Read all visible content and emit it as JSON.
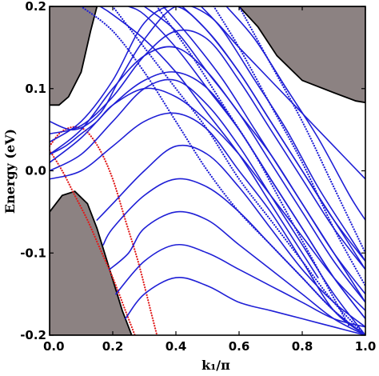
{
  "chart_data": {
    "type": "line",
    "title": "",
    "xlabel": "k₁/π",
    "ylabel": "Energy (eV)",
    "xlim": [
      0.0,
      1.0
    ],
    "ylim": [
      -0.2,
      0.2
    ],
    "grid": false,
    "x_ticks": [
      {
        "value": 0.0,
        "label": "0.0"
      },
      {
        "value": 0.2,
        "label": "0.2"
      },
      {
        "value": 0.4,
        "label": "0.4"
      },
      {
        "value": 0.6,
        "label": "0.6"
      },
      {
        "value": 0.8,
        "label": "0.8"
      },
      {
        "value": 1.0,
        "label": "1.0"
      }
    ],
    "y_ticks": [
      {
        "value": 0.2,
        "label": "0.2"
      },
      {
        "value": 0.1,
        "label": "0.1"
      },
      {
        "value": 0.0,
        "label": "0.0"
      },
      {
        "value": -0.1,
        "label": "-0.1"
      },
      {
        "value": -0.2,
        "label": "-0.2"
      }
    ],
    "colors": {
      "bulk_region": "#8c8282",
      "bulk_edge": "#000000",
      "blue_bands": "#1f1fd6",
      "red_band": "#e01a1a"
    },
    "regions": [
      {
        "name": "upper-left bulk",
        "boundary": [
          [
            0,
            0.2
          ],
          [
            0.15,
            0.2
          ],
          [
            0.13,
            0.17
          ],
          [
            0.1,
            0.12
          ],
          [
            0.06,
            0.09
          ],
          [
            0.03,
            0.08
          ],
          [
            0,
            0.08
          ]
        ]
      },
      {
        "name": "upper-right bulk",
        "boundary": [
          [
            0.6,
            0.2
          ],
          [
            1.0,
            0.2
          ],
          [
            1.0,
            0.083
          ],
          [
            0.97,
            0.085
          ],
          [
            0.9,
            0.095
          ],
          [
            0.8,
            0.11
          ],
          [
            0.72,
            0.14
          ],
          [
            0.66,
            0.175
          ]
        ]
      },
      {
        "name": "lower-left bulk",
        "boundary": [
          [
            0,
            -0.2
          ],
          [
            0.26,
            -0.2
          ],
          [
            0.23,
            -0.17
          ],
          [
            0.19,
            -0.12
          ],
          [
            0.15,
            -0.07
          ],
          [
            0.12,
            -0.04
          ],
          [
            0.08,
            -0.025
          ],
          [
            0.04,
            -0.03
          ],
          [
            0,
            -0.05
          ]
        ]
      }
    ],
    "series": [
      {
        "color": "#e01a1a",
        "style": "dotted",
        "x": [
          0.0,
          0.03,
          0.06,
          0.09,
          0.12,
          0.16,
          0.2,
          0.24,
          0.28,
          0.32,
          0.34
        ],
        "y": [
          0.03,
          0.045,
          0.052,
          0.053,
          0.047,
          0.025,
          -0.01,
          -0.06,
          -0.11,
          -0.17,
          -0.2
        ]
      },
      {
        "color": "#e01a1a",
        "style": "dotted",
        "x": [
          0.0,
          0.04,
          0.08,
          0.12,
          0.16,
          0.2,
          0.24,
          0.27
        ],
        "y": [
          0.025,
          0.0,
          -0.03,
          -0.06,
          -0.095,
          -0.13,
          -0.17,
          -0.2
        ]
      },
      {
        "color": "#1f1fd6",
        "style": "solid",
        "x": [
          0.0,
          0.08,
          0.16,
          0.22,
          0.3,
          0.4,
          0.5,
          0.6,
          0.7,
          0.8,
          0.9,
          1.0
        ],
        "y": [
          0.06,
          0.05,
          0.07,
          0.11,
          0.16,
          0.2,
          0.19,
          0.15,
          0.11,
          0.07,
          0.03,
          -0.01
        ]
      },
      {
        "color": "#1f1fd6",
        "style": "solid",
        "x": [
          0.0,
          0.1,
          0.2,
          0.3,
          0.4,
          0.5,
          0.6,
          0.7,
          0.8,
          0.9,
          1.0
        ],
        "y": [
          0.045,
          0.055,
          0.09,
          0.14,
          0.17,
          0.16,
          0.11,
          0.05,
          -0.01,
          -0.07,
          -0.12
        ]
      },
      {
        "color": "#1f1fd6",
        "style": "solid",
        "x": [
          0.0,
          0.1,
          0.2,
          0.3,
          0.4,
          0.5,
          0.6,
          0.7,
          0.8,
          0.9,
          1.0
        ],
        "y": [
          0.035,
          0.06,
          0.11,
          0.18,
          0.2,
          0.17,
          0.12,
          0.06,
          0.0,
          -0.06,
          -0.11
        ]
      },
      {
        "color": "#1f1fd6",
        "style": "solid",
        "x": [
          0.0,
          0.1,
          0.2,
          0.3,
          0.4,
          0.5,
          0.6,
          0.7,
          0.8,
          0.9,
          1.0
        ],
        "y": [
          0.02,
          0.05,
          0.1,
          0.14,
          0.15,
          0.12,
          0.07,
          0.02,
          -0.04,
          -0.1,
          -0.15
        ]
      },
      {
        "color": "#1f1fd6",
        "style": "solid",
        "x": [
          0.0,
          0.1,
          0.2,
          0.3,
          0.4,
          0.5,
          0.6,
          0.7,
          0.8,
          0.9,
          1.0
        ],
        "y": [
          0.01,
          0.04,
          0.08,
          0.11,
          0.12,
          0.1,
          0.05,
          -0.01,
          -0.07,
          -0.13,
          -0.18
        ]
      },
      {
        "color": "#1f1fd6",
        "style": "solid",
        "x": [
          0.0,
          0.1,
          0.2,
          0.3,
          0.4,
          0.5,
          0.6,
          0.7,
          0.8,
          0.9,
          1.0
        ],
        "y": [
          0.0,
          0.02,
          0.06,
          0.1,
          0.11,
          0.08,
          0.03,
          -0.03,
          -0.09,
          -0.15,
          -0.2
        ]
      },
      {
        "color": "#1f1fd6",
        "style": "solid",
        "x": [
          0.0,
          0.1,
          0.2,
          0.3,
          0.4,
          0.5,
          0.6,
          0.7,
          0.8,
          0.9,
          1.0
        ],
        "y": [
          -0.01,
          0.0,
          0.03,
          0.06,
          0.07,
          0.05,
          0.0,
          -0.05,
          -0.11,
          -0.17,
          -0.2
        ]
      },
      {
        "color": "#1f1fd6",
        "style": "solid",
        "x": [
          0.15,
          0.2,
          0.3,
          0.4,
          0.5,
          0.6,
          0.7,
          0.8,
          0.9,
          1.0
        ],
        "y": [
          -0.06,
          -0.04,
          0.0,
          0.03,
          0.02,
          -0.02,
          -0.07,
          -0.12,
          -0.16,
          -0.19
        ]
      },
      {
        "color": "#1f1fd6",
        "style": "solid",
        "x": [
          0.17,
          0.2,
          0.3,
          0.4,
          0.5,
          0.6,
          0.7,
          0.8,
          0.9,
          1.0
        ],
        "y": [
          -0.09,
          -0.07,
          -0.03,
          -0.01,
          -0.02,
          -0.05,
          -0.09,
          -0.13,
          -0.17,
          -0.2
        ]
      },
      {
        "color": "#1f1fd6",
        "style": "solid",
        "x": [
          0.19,
          0.25,
          0.3,
          0.4,
          0.5,
          0.6,
          0.7,
          0.8,
          0.9,
          1.0
        ],
        "y": [
          -0.12,
          -0.1,
          -0.07,
          -0.05,
          -0.06,
          -0.09,
          -0.12,
          -0.15,
          -0.18,
          -0.2
        ]
      },
      {
        "color": "#1f1fd6",
        "style": "solid",
        "x": [
          0.21,
          0.3,
          0.4,
          0.5,
          0.6,
          0.7,
          0.8,
          0.9,
          1.0
        ],
        "y": [
          -0.15,
          -0.11,
          -0.09,
          -0.1,
          -0.12,
          -0.14,
          -0.16,
          -0.18,
          -0.19
        ]
      },
      {
        "color": "#1f1fd6",
        "style": "solid",
        "x": [
          0.24,
          0.3,
          0.4,
          0.5,
          0.6,
          0.7,
          0.8,
          0.9,
          1.0
        ],
        "y": [
          -0.18,
          -0.15,
          -0.13,
          -0.14,
          -0.16,
          -0.17,
          -0.18,
          -0.19,
          -0.2
        ]
      },
      {
        "color": "#1f1fd6",
        "style": "solid",
        "x": [
          0.16,
          0.2,
          0.3,
          0.4,
          0.5,
          0.6,
          0.7,
          0.8,
          0.85
        ],
        "y": [
          0.2,
          0.19,
          0.16,
          0.12,
          0.07,
          0.02,
          -0.04,
          -0.1,
          -0.13
        ]
      },
      {
        "color": "#1f1fd6",
        "style": "solid",
        "x": [
          0.25,
          0.3,
          0.4,
          0.5,
          0.6,
          0.7,
          0.8,
          0.9,
          1.0
        ],
        "y": [
          0.2,
          0.19,
          0.15,
          0.1,
          0.05,
          -0.01,
          -0.07,
          -0.13,
          -0.18
        ]
      },
      {
        "color": "#1f1fd6",
        "style": "solid",
        "x": [
          0.3,
          0.4,
          0.5,
          0.6,
          0.7,
          0.8,
          0.9,
          1.0
        ],
        "y": [
          0.2,
          0.17,
          0.12,
          0.07,
          0.01,
          -0.05,
          -0.11,
          -0.16
        ]
      },
      {
        "color": "#1f1fd6",
        "style": "solid",
        "x": [
          0.36,
          0.45,
          0.55,
          0.65,
          0.75,
          0.85,
          0.95,
          1.0
        ],
        "y": [
          0.2,
          0.16,
          0.11,
          0.05,
          -0.01,
          -0.07,
          -0.13,
          -0.16
        ]
      },
      {
        "color": "#1f1fd6",
        "style": "solid",
        "x": [
          0.42,
          0.5,
          0.6,
          0.7,
          0.8,
          0.9,
          1.0
        ],
        "y": [
          0.2,
          0.17,
          0.12,
          0.06,
          0.0,
          -0.06,
          -0.12
        ]
      },
      {
        "color": "#1f1fd6",
        "style": "solid",
        "x": [
          0.48,
          0.55,
          0.65,
          0.75,
          0.85,
          0.95,
          1.0
        ],
        "y": [
          0.2,
          0.17,
          0.11,
          0.05,
          -0.02,
          -0.08,
          -0.11
        ]
      },
      {
        "color": "#1f1fd6",
        "style": "solid",
        "x": [
          0.56,
          0.65,
          0.75,
          0.85,
          0.95,
          1.0
        ],
        "y": [
          0.2,
          0.16,
          0.1,
          0.04,
          -0.03,
          -0.06
        ]
      },
      {
        "color": "#1f1fd6",
        "style": "solid",
        "x": [
          0.0,
          0.05,
          0.1,
          0.15,
          0.2,
          0.3,
          0.4,
          0.5,
          0.6,
          0.7,
          0.8,
          0.9,
          1.0
        ],
        "y": [
          0.02,
          0.03,
          0.045,
          0.06,
          0.08,
          0.1,
          0.09,
          0.06,
          0.02,
          -0.03,
          -0.08,
          -0.13,
          -0.17
        ]
      },
      {
        "color": "#1f1fd6",
        "style": "dotted",
        "x": [
          0.1,
          0.2,
          0.3,
          0.4,
          0.5,
          0.6,
          0.7,
          0.8,
          0.9,
          1.0
        ],
        "y": [
          0.2,
          0.17,
          0.12,
          0.06,
          0.0,
          -0.05,
          -0.09,
          -0.13,
          -0.17,
          -0.2
        ]
      },
      {
        "color": "#1f1fd6",
        "style": "dotted",
        "x": [
          0.2,
          0.3,
          0.4,
          0.5,
          0.6,
          0.7,
          0.8,
          0.9,
          1.0
        ],
        "y": [
          0.2,
          0.15,
          0.1,
          0.05,
          -0.01,
          -0.06,
          -0.11,
          -0.16,
          -0.2
        ]
      },
      {
        "color": "#1f1fd6",
        "style": "dotted",
        "x": [
          0.34,
          0.45,
          0.55,
          0.65,
          0.75,
          0.85,
          0.95
        ],
        "y": [
          0.2,
          0.14,
          0.08,
          0.02,
          -0.05,
          -0.12,
          -0.19
        ]
      },
      {
        "color": "#1f1fd6",
        "style": "dotted",
        "x": [
          0.52,
          0.6,
          0.7,
          0.8,
          0.9,
          1.0
        ],
        "y": [
          0.2,
          0.15,
          0.08,
          0.01,
          -0.07,
          -0.14
        ]
      },
      {
        "color": "#1f1fd6",
        "style": "dotted",
        "x": [
          0.6,
          0.7,
          0.8,
          0.9,
          1.0
        ],
        "y": [
          0.2,
          0.13,
          0.06,
          -0.02,
          -0.1
        ]
      }
    ]
  }
}
